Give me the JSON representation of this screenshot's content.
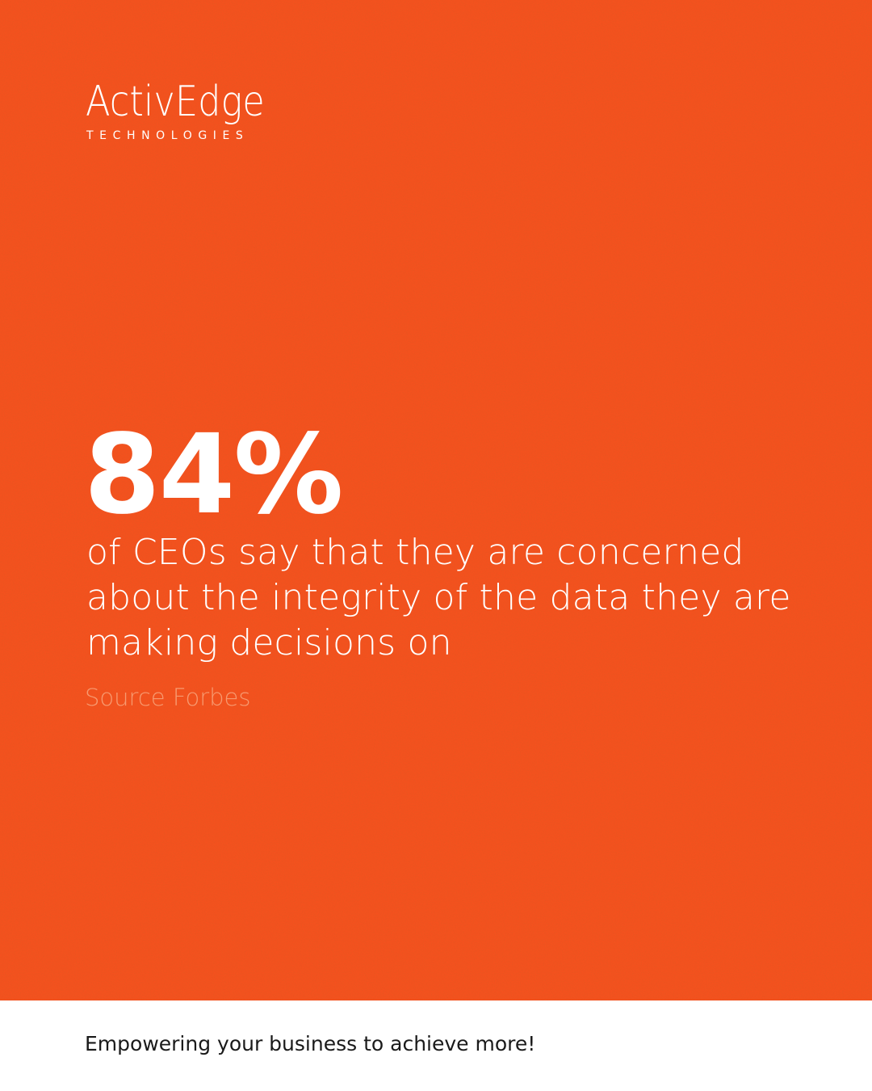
{
  "colors": {
    "background": "#f4511e",
    "text": "#ffffff",
    "source_text": "#f79a70",
    "footer_background": "#ffffff",
    "footer_text": "#1a1a1a"
  },
  "logo": {
    "wordmark": "ActivEdge",
    "tagline": "TECHNOLOGIES"
  },
  "stat": {
    "value": "84%",
    "description": "of CEOs say that they are concerned about the integrity of the data they are making decisions on"
  },
  "source": "Source Forbes",
  "footer": {
    "tagline": "Empowering your business to achieve more!"
  }
}
